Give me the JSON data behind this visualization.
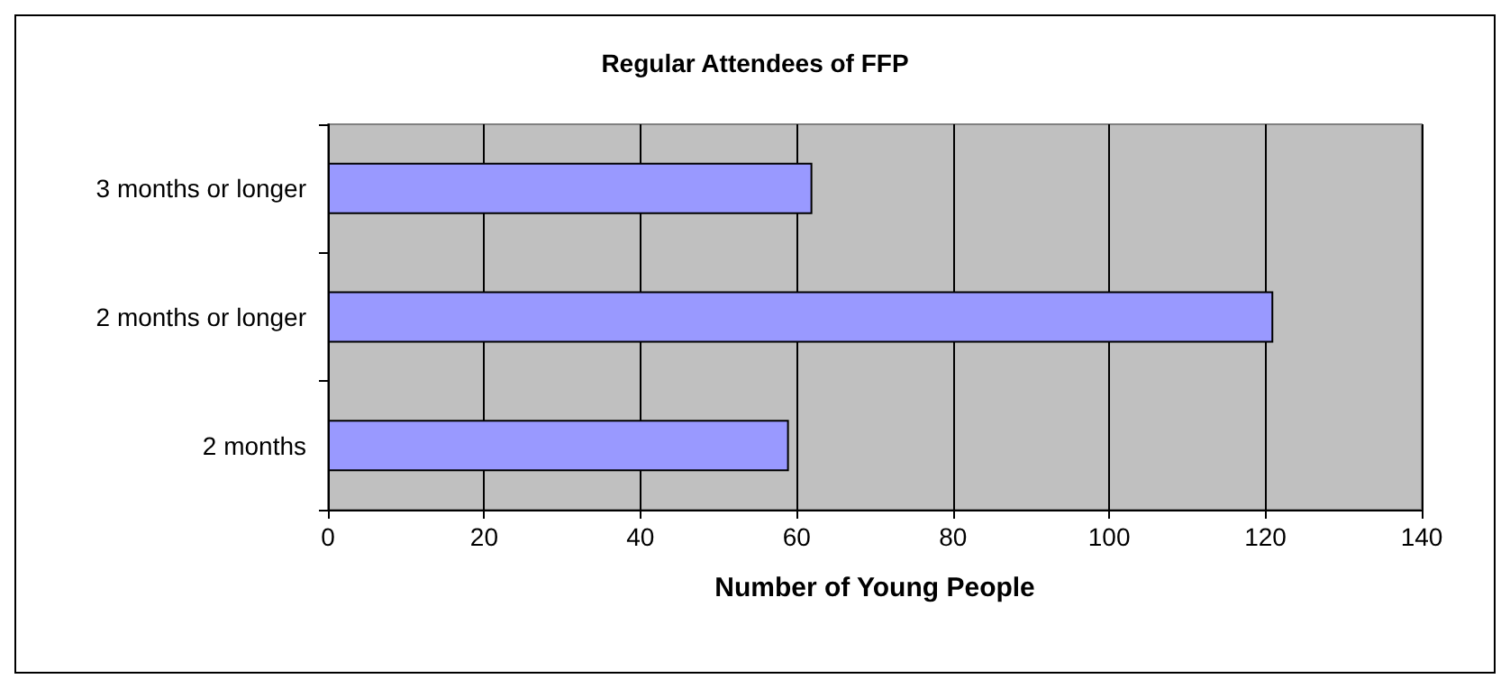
{
  "chart_data": {
    "type": "bar",
    "orientation": "horizontal",
    "title": "Regular Attendees of FFP",
    "xlabel": "Number of Young People",
    "categories": [
      "3 months or longer",
      "2 months or longer",
      "2 months"
    ],
    "values": [
      62,
      121,
      59
    ],
    "color": "#9999ff",
    "xlim": [
      0,
      140
    ],
    "xticks": [
      0,
      20,
      40,
      60,
      80,
      100,
      120,
      140
    ],
    "grid": "x"
  }
}
